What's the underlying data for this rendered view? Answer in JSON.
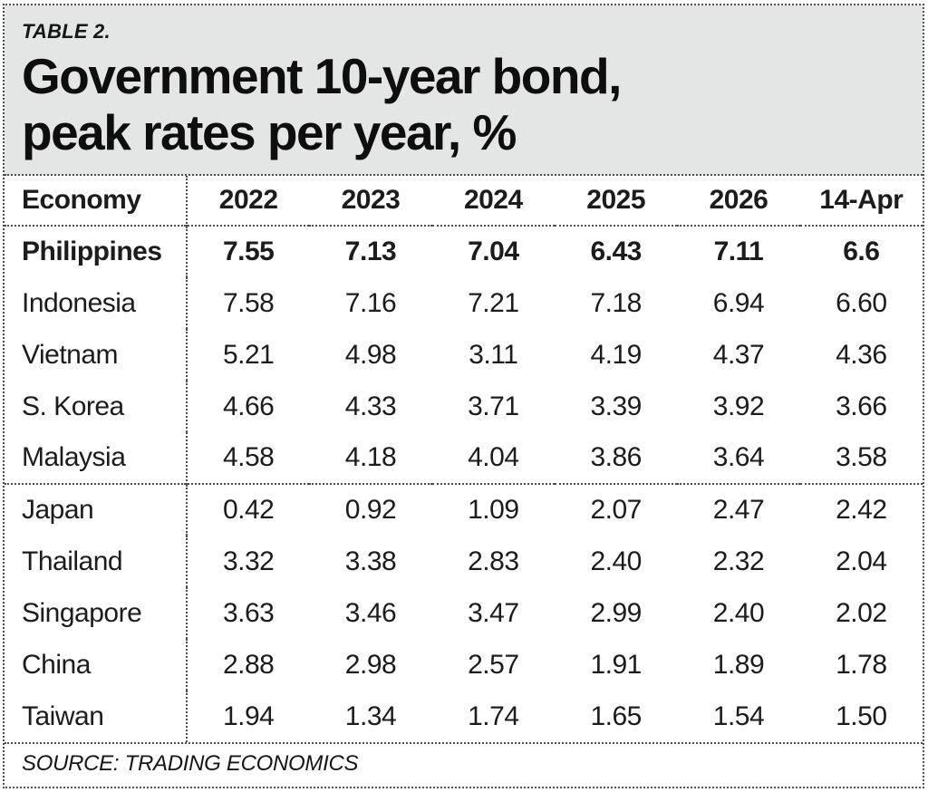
{
  "header": {
    "kicker": "TABLE 2.",
    "title_line1": "Government 10-year bond,",
    "title_line2": "peak rates per year, %"
  },
  "source": "SOURCE: TRADING ECONOMICS",
  "colors": {
    "title_bg": "#e4e5e5",
    "text": "#1c1c1c",
    "border_dotted": "#4d4d4d"
  },
  "chart_data": {
    "type": "table",
    "title": "Government 10-year bond, peak rates per year, %",
    "columns": [
      "Economy",
      "2022",
      "2023",
      "2024",
      "2025",
      "2026",
      "14-Apr"
    ],
    "rows": [
      {
        "economy": "Philippines",
        "values": [
          "7.55",
          "7.13",
          "7.04",
          "6.43",
          "7.11",
          "6.6"
        ],
        "bold": true,
        "group_end": false
      },
      {
        "economy": "Indonesia",
        "values": [
          "7.58",
          "7.16",
          "7.21",
          "7.18",
          "6.94",
          "6.60"
        ],
        "bold": false,
        "group_end": false
      },
      {
        "economy": "Vietnam",
        "values": [
          "5.21",
          "4.98",
          "3.11",
          "4.19",
          "4.37",
          "4.36"
        ],
        "bold": false,
        "group_end": false
      },
      {
        "economy": "S. Korea",
        "values": [
          "4.66",
          "4.33",
          "3.71",
          "3.39",
          "3.92",
          "3.66"
        ],
        "bold": false,
        "group_end": false
      },
      {
        "economy": "Malaysia",
        "values": [
          "4.58",
          "4.18",
          "4.04",
          "3.86",
          "3.64",
          "3.58"
        ],
        "bold": false,
        "group_end": true
      },
      {
        "economy": "Japan",
        "values": [
          "0.42",
          "0.92",
          "1.09",
          "2.07",
          "2.47",
          "2.42"
        ],
        "bold": false,
        "group_end": false
      },
      {
        "economy": "Thailand",
        "values": [
          "3.32",
          "3.38",
          "2.83",
          "2.40",
          "2.32",
          "2.04"
        ],
        "bold": false,
        "group_end": false
      },
      {
        "economy": "Singapore",
        "values": [
          "3.63",
          "3.46",
          "3.47",
          "2.99",
          "2.40",
          "2.02"
        ],
        "bold": false,
        "group_end": false
      },
      {
        "economy": "China",
        "values": [
          "2.88",
          "2.98",
          "2.57",
          "1.91",
          "1.89",
          "1.78"
        ],
        "bold": false,
        "group_end": false
      },
      {
        "economy": "Taiwan",
        "values": [
          "1.94",
          "1.34",
          "1.74",
          "1.65",
          "1.54",
          "1.50"
        ],
        "bold": false,
        "group_end": false
      }
    ]
  }
}
